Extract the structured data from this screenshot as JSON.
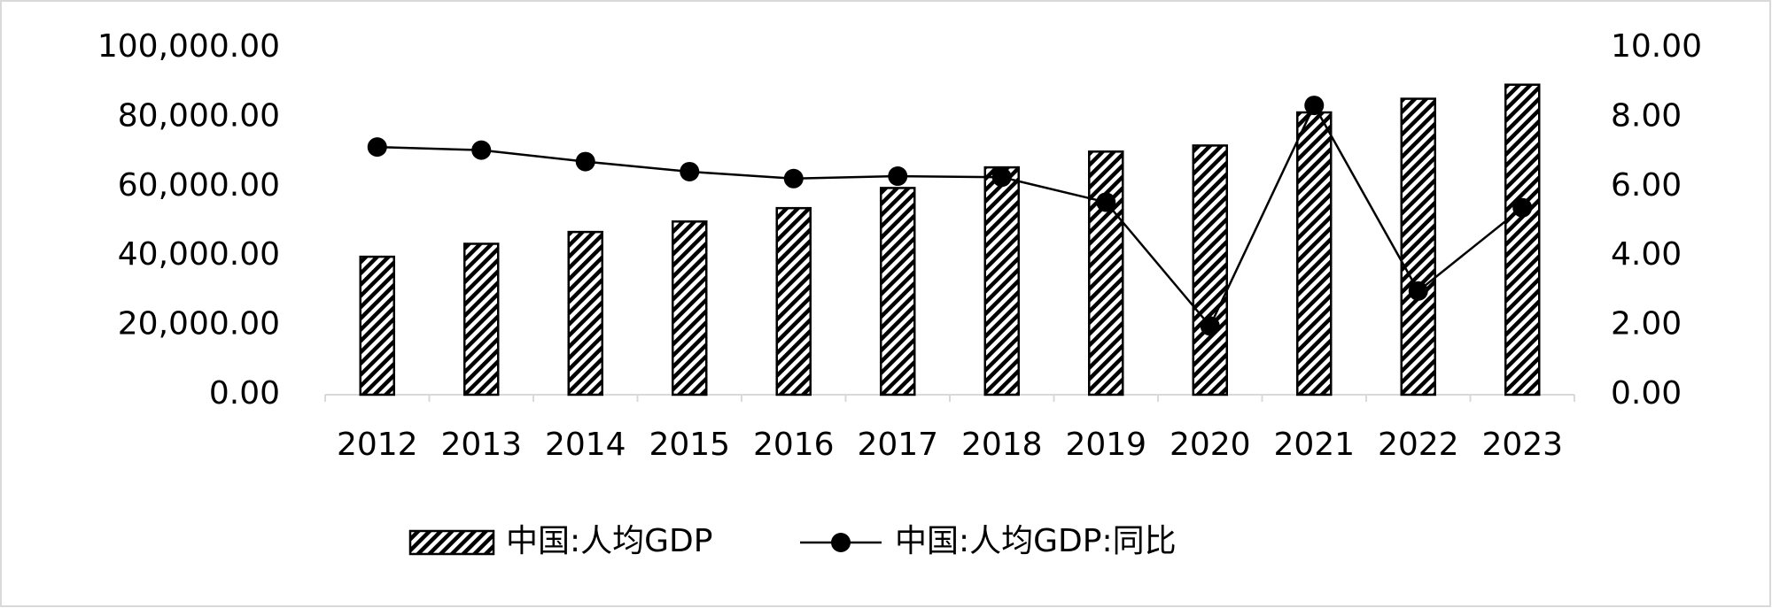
{
  "chart_data": {
    "type": "combo",
    "categories": [
      "2012",
      "2013",
      "2014",
      "2015",
      "2016",
      "2017",
      "2018",
      "2019",
      "2020",
      "2021",
      "2022",
      "2023"
    ],
    "series": [
      {
        "name": "中国:人均GDP",
        "type": "bar",
        "color": "#000000",
        "values": [
          39771,
          43497,
          46912,
          49922,
          53783,
          59592,
          65534,
          70078,
          71828,
          81370,
          85310,
          89358
        ]
      },
      {
        "name": "中国:人均GDP:同比",
        "type": "line",
        "axis": "y2",
        "color": "#000000",
        "values": [
          7.14,
          7.05,
          6.72,
          6.43,
          6.23,
          6.3,
          6.27,
          5.55,
          1.98,
          8.34,
          2.99,
          5.39
        ]
      }
    ],
    "ylim": [
      0,
      100000
    ],
    "yticks": [
      {
        "value": 0,
        "label": "0.00"
      },
      {
        "value": 20000,
        "label": "20,000.00"
      },
      {
        "value": 40000,
        "label": "40,000.00"
      },
      {
        "value": 60000,
        "label": "60,000.00"
      },
      {
        "value": 80000,
        "label": "80,000.00"
      },
      {
        "value": 100000,
        "label": "100,000.00"
      }
    ],
    "y2lim": [
      0,
      10
    ],
    "y2ticks": [
      {
        "value": 0,
        "label": "0.00"
      },
      {
        "value": 2,
        "label": "2.00"
      },
      {
        "value": 4,
        "label": "4.00"
      },
      {
        "value": 6,
        "label": "6.00"
      },
      {
        "value": 8,
        "label": "8.00"
      },
      {
        "value": 10,
        "label": "10.00"
      }
    ],
    "grid": false,
    "legend": "bottom"
  }
}
